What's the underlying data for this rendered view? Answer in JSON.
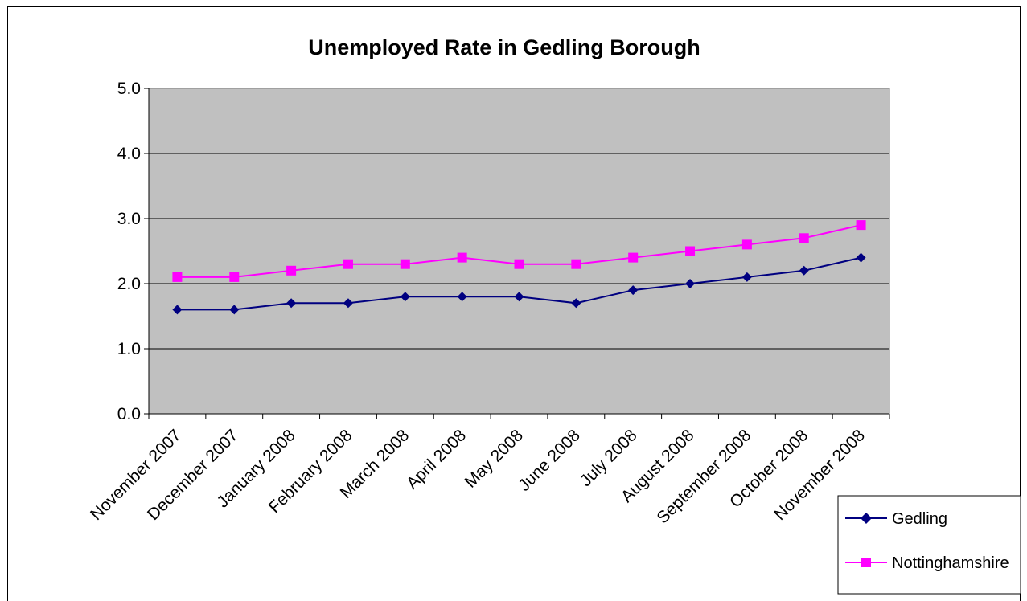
{
  "chart_data": {
    "type": "line",
    "title": "Unemployed Rate in Gedling Borough",
    "xlabel": "",
    "ylabel": "",
    "categories": [
      "November 2007",
      "December 2007",
      "January 2008",
      "February 2008",
      "March 2008",
      "April 2008",
      "May 2008",
      "June 2008",
      "July 2008",
      "August 2008",
      "September 2008",
      "October 2008",
      "November 2008"
    ],
    "ylim": [
      0,
      5
    ],
    "yticks": [
      "0.0",
      "1.0",
      "2.0",
      "3.0",
      "4.0",
      "5.0"
    ],
    "grid": true,
    "legend_position": "bottom-right",
    "plot_background": "#c0c0c0",
    "series": [
      {
        "name": "Gedling",
        "color": "#000080",
        "marker": "diamond",
        "values": [
          1.6,
          1.6,
          1.7,
          1.7,
          1.8,
          1.8,
          1.8,
          1.7,
          1.9,
          2.0,
          2.1,
          2.2,
          2.4
        ]
      },
      {
        "name": "Nottinghamshire",
        "color": "#ff00ff",
        "marker": "square",
        "values": [
          2.1,
          2.1,
          2.2,
          2.3,
          2.3,
          2.4,
          2.3,
          2.3,
          2.4,
          2.5,
          2.6,
          2.7,
          2.9
        ]
      }
    ]
  }
}
